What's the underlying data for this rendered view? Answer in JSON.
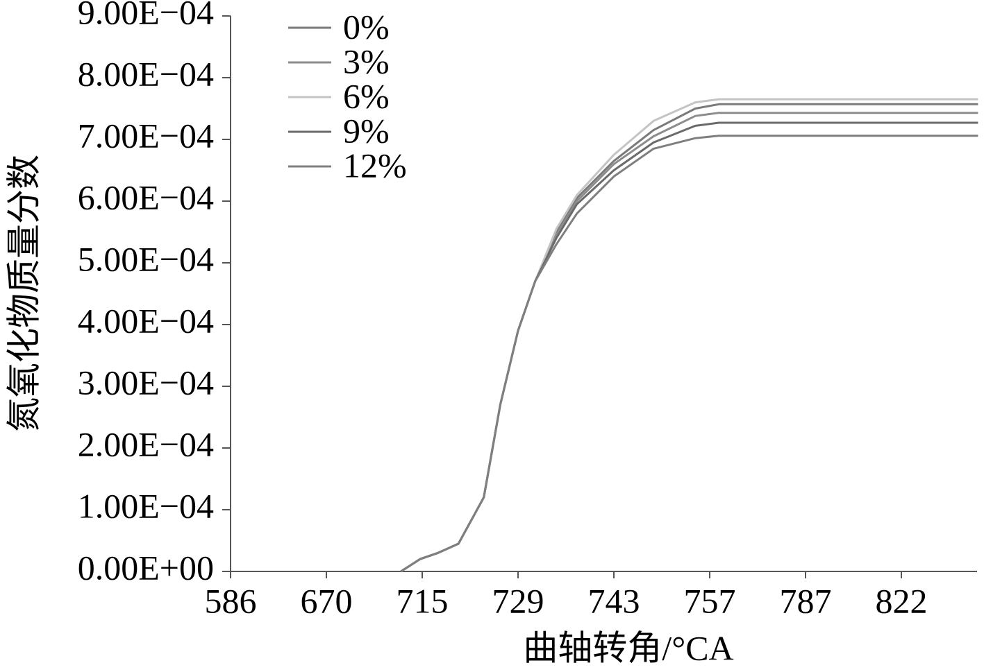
{
  "chart_data": {
    "type": "line",
    "x_label": "曲轴转角/°CA",
    "y_label": "氮氧化物质量分数",
    "x": [
      705,
      714,
      717.3,
      720.3,
      724,
      726.4,
      729,
      731.5,
      734.6,
      737.6,
      743,
      748.8,
      754.9,
      759.9,
      850
    ],
    "series": [
      {
        "name": "0%",
        "color": "#7a7a7a",
        "values": [
          0,
          2e-05,
          3e-05,
          4.5e-05,
          0.00012,
          0.00027,
          0.00039,
          0.00047,
          0.00055,
          0.000605,
          0.000665,
          0.000715,
          0.00075,
          0.000757,
          0.000757
        ]
      },
      {
        "name": "3%",
        "color": "#8c8c8c",
        "values": [
          0,
          2e-05,
          3e-05,
          4.5e-05,
          0.00012,
          0.00027,
          0.00039,
          0.00047,
          0.000545,
          0.0006,
          0.00066,
          0.000705,
          0.000738,
          0.000743,
          0.000743
        ]
      },
      {
        "name": "6%",
        "color": "#c4c4c4",
        "values": [
          0,
          2e-05,
          3e-05,
          4.5e-05,
          0.00012,
          0.00027,
          0.00039,
          0.00047,
          0.000555,
          0.00061,
          0.000675,
          0.00073,
          0.00076,
          0.000765,
          0.000765
        ]
      },
      {
        "name": "9%",
        "color": "#6a6a6a",
        "values": [
          0,
          2e-05,
          3e-05,
          4.5e-05,
          0.00012,
          0.00027,
          0.00039,
          0.00047,
          0.00054,
          0.000595,
          0.00065,
          0.000695,
          0.000722,
          0.000727,
          0.000727
        ]
      },
      {
        "name": "12%",
        "color": "#7f7f7f",
        "values": [
          0,
          2e-05,
          3e-05,
          4.5e-05,
          0.00012,
          0.00027,
          0.00039,
          0.00047,
          0.00053,
          0.00058,
          0.00064,
          0.000685,
          0.000702,
          0.000706,
          0.000706
        ]
      }
    ],
    "xlim": [
      586,
      850
    ],
    "xticks": [
      586,
      670,
      715,
      729,
      743,
      757,
      787,
      822
    ],
    "ylim": [
      0,
      0.0009
    ],
    "yticks": [
      {
        "value": 0,
        "label": "0.00E+00"
      },
      {
        "value": 0.0001,
        "label": "1.00E−04"
      },
      {
        "value": 0.0002,
        "label": "2.00E−04"
      },
      {
        "value": 0.0003,
        "label": "3.00E−04"
      },
      {
        "value": 0.0004,
        "label": "4.00E−04"
      },
      {
        "value": 0.0005,
        "label": "5.00E−04"
      },
      {
        "value": 0.0006,
        "label": "6.00E−04"
      },
      {
        "value": 0.0007,
        "label": "7.00E−04"
      },
      {
        "value": 0.0008,
        "label": "8.00E−04"
      },
      {
        "value": 0.0009,
        "label": "9.00E−04"
      }
    ],
    "legend": "upper-left"
  }
}
